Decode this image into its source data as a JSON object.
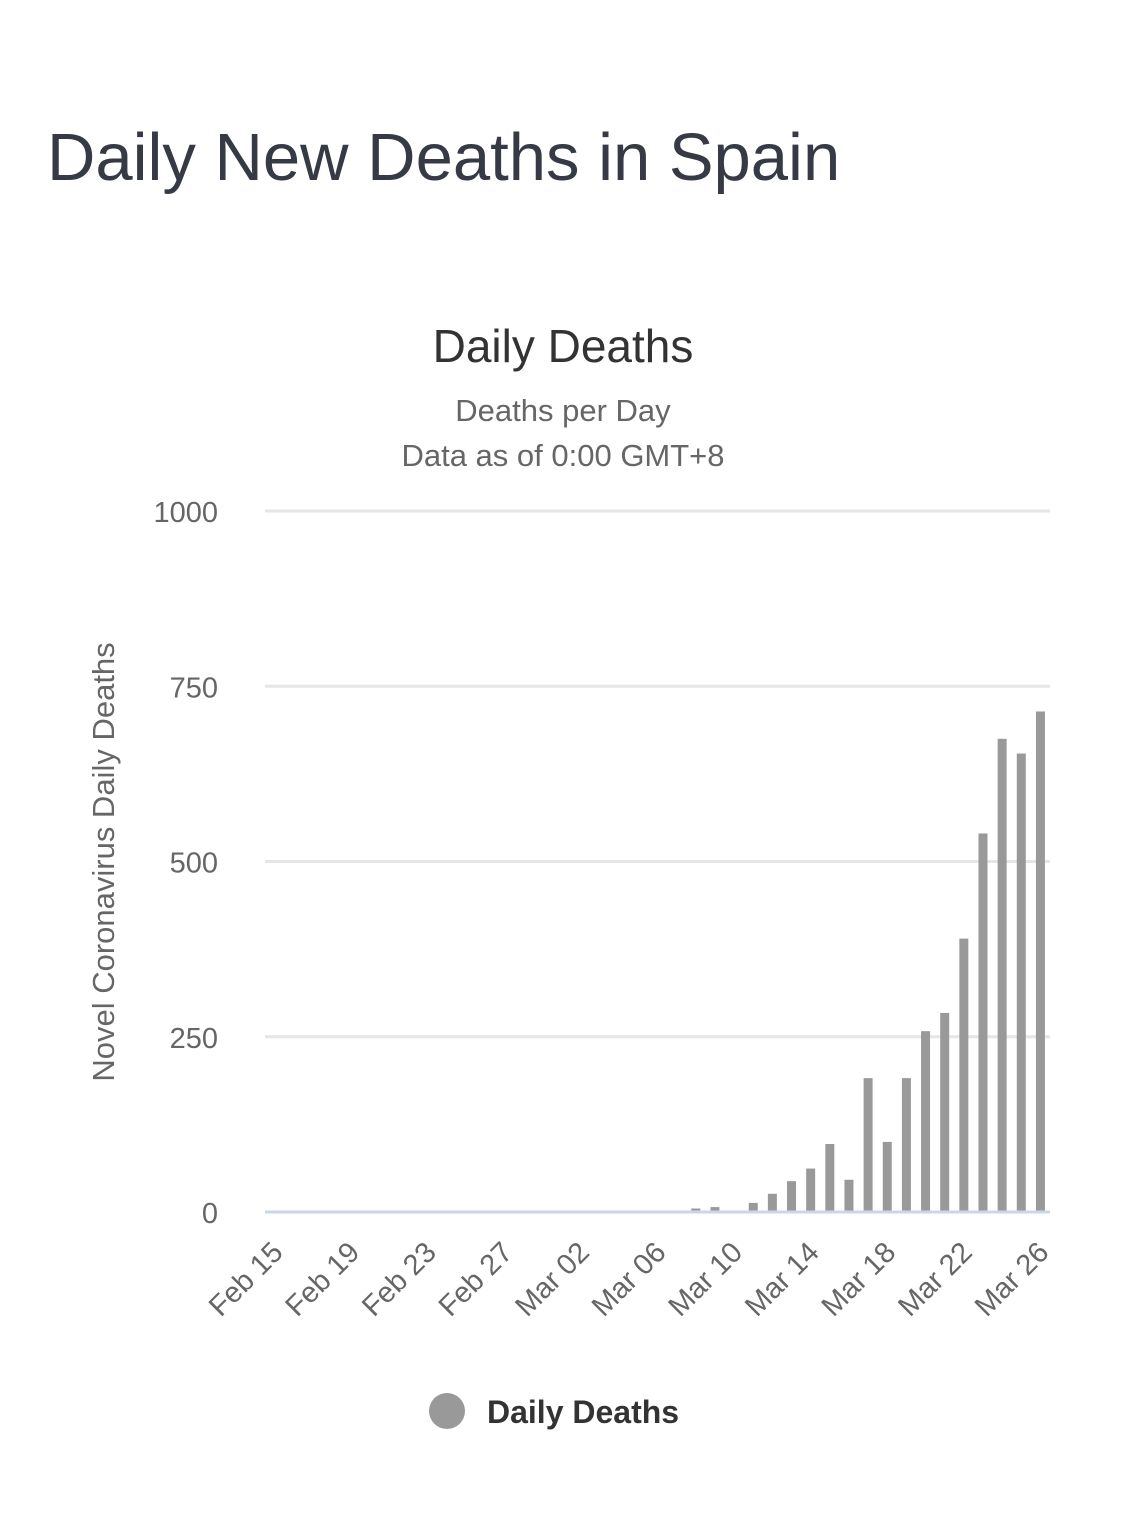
{
  "page": {
    "heading": "Daily New Deaths in Spain"
  },
  "colors": {
    "bar": "#999999",
    "grid": "#e6e6e6",
    "axis_line": "#ccd6eb",
    "heading_text": "#363a45",
    "title_text": "#333333",
    "subtitle_text": "#666666"
  },
  "chart_data": {
    "type": "bar",
    "title": "Daily Deaths",
    "subtitle_lines": [
      "Deaths per Day",
      "Data as of 0:00 GMT+8"
    ],
    "xlabel": "",
    "ylabel": "Novel Coronavirus Daily Deaths",
    "ylim": [
      0,
      1000
    ],
    "yticks": [
      0,
      250,
      500,
      750,
      1000
    ],
    "grid": true,
    "legend_position": "bottom-center",
    "x_tick_labels": [
      "Feb 15",
      "Feb 19",
      "Feb 23",
      "Feb 27",
      "Mar 02",
      "Mar 06",
      "Mar 10",
      "Mar 14",
      "Mar 18",
      "Mar 22",
      "Mar 26"
    ],
    "categories": [
      "Feb 15",
      "Feb 16",
      "Feb 17",
      "Feb 18",
      "Feb 19",
      "Feb 20",
      "Feb 21",
      "Feb 22",
      "Feb 23",
      "Feb 24",
      "Feb 25",
      "Feb 26",
      "Feb 27",
      "Feb 28",
      "Feb 29",
      "Mar 01",
      "Mar 02",
      "Mar 03",
      "Mar 04",
      "Mar 05",
      "Mar 06",
      "Mar 07",
      "Mar 08",
      "Mar 09",
      "Mar 10",
      "Mar 11",
      "Mar 12",
      "Mar 13",
      "Mar 14",
      "Mar 15",
      "Mar 16",
      "Mar 17",
      "Mar 18",
      "Mar 19",
      "Mar 20",
      "Mar 21",
      "Mar 22",
      "Mar 23",
      "Mar 24",
      "Mar 25",
      "Mar 26"
    ],
    "series": [
      {
        "name": "Daily Deaths",
        "color": "#999999",
        "values": [
          0,
          0,
          0,
          0,
          0,
          0,
          0,
          0,
          0,
          0,
          0,
          0,
          0,
          0,
          0,
          0,
          0,
          0,
          0,
          0,
          0,
          0,
          5,
          7,
          0,
          13,
          26,
          44,
          62,
          97,
          46,
          191,
          100,
          191,
          258,
          284,
          390,
          540,
          675,
          654,
          714
        ]
      }
    ]
  }
}
